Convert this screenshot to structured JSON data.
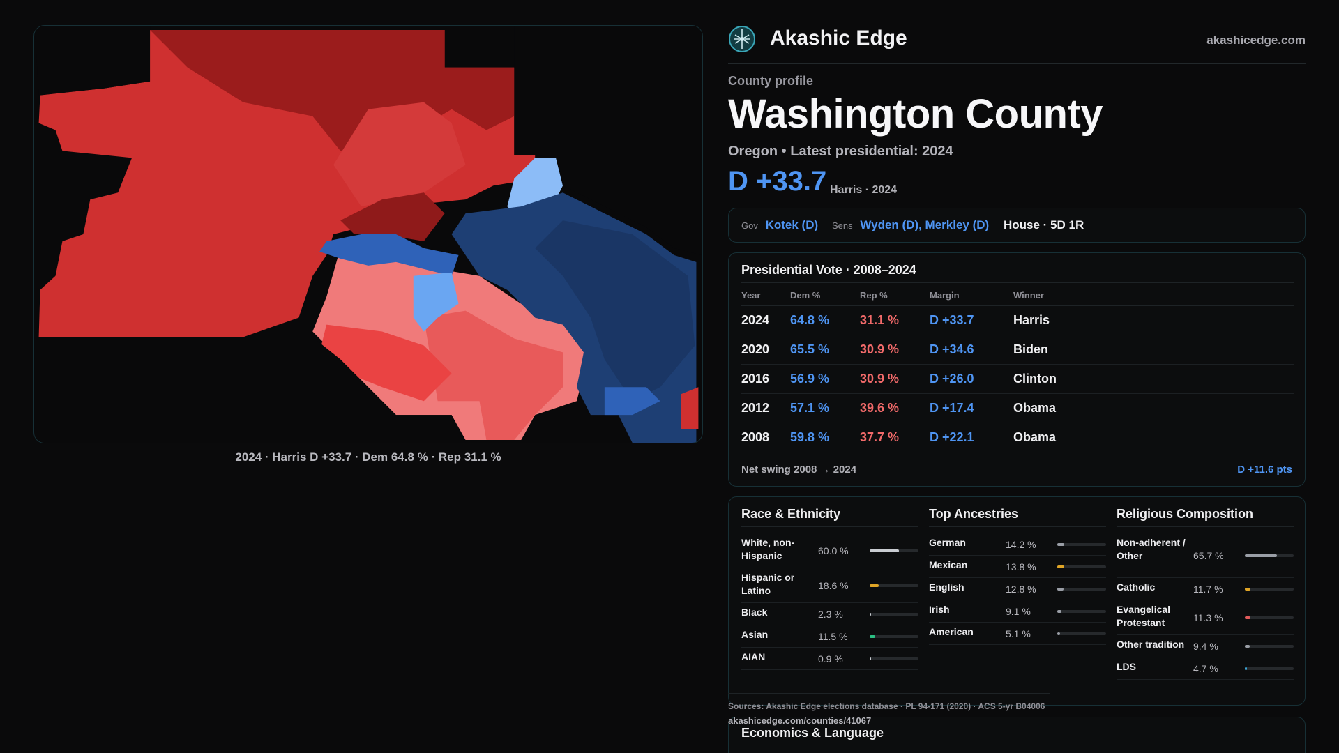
{
  "map": {
    "caption": "2024 · Harris D +33.7 · Dem 64.8 % · Rep 31.1 %"
  },
  "brand": {
    "name": "Akashic Edge",
    "url": "akashicedge.com",
    "icon": "network-globe-icon"
  },
  "profile": {
    "eyebrow": "County profile",
    "title": "Washington County",
    "subtitle": "Oregon • Latest presidential: 2024",
    "margin": "D +33.7",
    "margin_note": "Harris · 2024"
  },
  "officials": {
    "gov_label": "Gov",
    "gov": "Kotek (D)",
    "sens_label": "Sens",
    "sens": "Wyden (D), Merkley (D)",
    "house": "House · 5D 1R"
  },
  "presidential": {
    "title": "Presidential Vote · 2008–2024",
    "headers": [
      "Year",
      "Dem %",
      "Rep %",
      "Margin",
      "Winner"
    ],
    "rows": [
      {
        "year": "2024",
        "dem": "64.8 %",
        "rep": "31.1 %",
        "margin": "D +33.7",
        "winner": "Harris"
      },
      {
        "year": "2020",
        "dem": "65.5 %",
        "rep": "30.9 %",
        "margin": "D +34.6",
        "winner": "Biden"
      },
      {
        "year": "2016",
        "dem": "56.9 %",
        "rep": "30.9 %",
        "margin": "D +26.0",
        "winner": "Clinton"
      },
      {
        "year": "2012",
        "dem": "57.1 %",
        "rep": "39.6 %",
        "margin": "D +17.4",
        "winner": "Obama"
      },
      {
        "year": "2008",
        "dem": "59.8 %",
        "rep": "37.7 %",
        "margin": "D +22.1",
        "winner": "Obama"
      }
    ],
    "swing_label": "Net swing 2008 → 2024",
    "swing_value": "D +11.6 pts"
  },
  "demographics": {
    "race": {
      "title": "Race & Ethnicity",
      "rows": [
        {
          "label": "White, non-Hispanic",
          "value": "60.0 %",
          "fraction": 0.6,
          "color": "#c9ccd1"
        },
        {
          "label": "Hispanic or Latino",
          "value": "18.6 %",
          "fraction": 0.186,
          "color": "#e0a526"
        },
        {
          "label": "Black",
          "value": "2.3 %",
          "fraction": 0.023,
          "color": "#c9ccd1"
        },
        {
          "label": "Asian",
          "value": "11.5 %",
          "fraction": 0.115,
          "color": "#2bbf83"
        },
        {
          "label": "AIAN",
          "value": "0.9 %",
          "fraction": 0.009,
          "color": "#c9ccd1"
        }
      ]
    },
    "ancestry": {
      "title": "Top Ancestries",
      "rows": [
        {
          "label": "German",
          "value": "14.2 %",
          "fraction": 0.142,
          "color": "#9a9ea6"
        },
        {
          "label": "Mexican",
          "value": "13.8 %",
          "fraction": 0.138,
          "color": "#e0a526"
        },
        {
          "label": "English",
          "value": "12.8 %",
          "fraction": 0.128,
          "color": "#9a9ea6"
        },
        {
          "label": "Irish",
          "value": "9.1 %",
          "fraction": 0.091,
          "color": "#9a9ea6"
        },
        {
          "label": "American",
          "value": "5.1 %",
          "fraction": 0.051,
          "color": "#9a9ea6"
        }
      ]
    },
    "religion": {
      "title": "Religious Composition",
      "rows": [
        {
          "label": "Non-adherent / Other",
          "value": "65.7 %",
          "fraction": 0.657,
          "color": "#9a9ea6"
        },
        {
          "label": "Catholic",
          "value": "11.7 %",
          "fraction": 0.117,
          "color": "#e0a526"
        },
        {
          "label": "Evangelical Protestant",
          "value": "11.3 %",
          "fraction": 0.113,
          "color": "#e05a5a"
        },
        {
          "label": "Other tradition",
          "value": "9.4 %",
          "fraction": 0.094,
          "color": "#9a9ea6"
        },
        {
          "label": "LDS",
          "value": "4.7 %",
          "fraction": 0.047,
          "color": "#3aa6d8"
        }
      ]
    }
  },
  "sources": "Sources: Akashic Edge elections database · PL 94-171 (2020) · ACS 5-yr B04006",
  "permalink": "akashicedge.com/counties/41067",
  "economics": {
    "title": "Economics & Language"
  }
}
